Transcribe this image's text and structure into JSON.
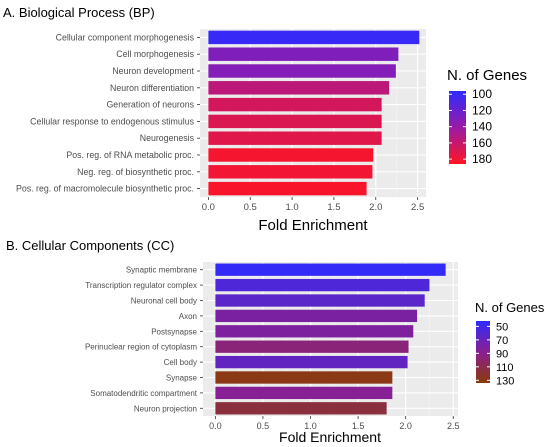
{
  "chart_data": [
    {
      "type": "bar",
      "orientation": "horizontal",
      "title": "A. Biological Process (BP)",
      "xlabel": "Fold Enrichment",
      "ylabel": "",
      "xlim": [
        -0.1,
        2.6
      ],
      "xticks": [
        "0.0",
        "0.5",
        "1.0",
        "1.5",
        "2.0",
        "2.5"
      ],
      "xtick_values": [
        0,
        0.5,
        1.0,
        1.5,
        2.0,
        2.5
      ],
      "grid": true,
      "legend_position": "right",
      "categories": [
        "Cellular component morphogenesis",
        "Cell morphogenesis",
        "Neuron development",
        "Neuron differentiation",
        "Generation of neurons",
        "Cellular response to endogenous stimulus",
        "Neurogenesis",
        "Pos. reg. of RNA metabolic proc.",
        "Neg. reg. of biosynthetic proc.",
        "Pos. reg. of macromolecule biosynthetic proc."
      ],
      "values": [
        2.52,
        2.27,
        2.24,
        2.16,
        2.07,
        2.07,
        2.07,
        1.97,
        1.96,
        1.89
      ],
      "color_values": [
        100,
        130,
        132,
        156,
        166,
        170,
        172,
        182,
        180,
        183
      ],
      "colorbar": {
        "title": "N. of Genes",
        "ticks": [
          "100",
          "120",
          "140",
          "160",
          "180"
        ],
        "tick_values": [
          100,
          120,
          140,
          160,
          180
        ],
        "range": [
          96,
          186
        ],
        "color_low": "#2e2bff",
        "color_mid": "#9b1aa6",
        "color_high": "#ff1522"
      }
    },
    {
      "type": "bar",
      "orientation": "horizontal",
      "title": "B. Cellular Components (CC)",
      "xlabel": "Fold Enrichment",
      "ylabel": "",
      "xlim": [
        -0.13,
        2.55
      ],
      "xticks": [
        "0.0",
        "0.5",
        "1.0",
        "1.5",
        "2.0",
        "2.5"
      ],
      "xtick_values": [
        0,
        0.5,
        1.0,
        1.5,
        2.0,
        2.5
      ],
      "grid": true,
      "legend_position": "right",
      "categories": [
        "Synaptic membrane",
        "Transcription regulator complex",
        "Neuronal cell body",
        "Axon",
        "Postsynapse",
        "Perinuclear region of cytoplasm",
        "Cell body",
        "Synapse",
        "Somatodendritic compartment",
        "Neuron projection"
      ],
      "values": [
        2.42,
        2.25,
        2.2,
        2.12,
        2.08,
        2.03,
        2.02,
        1.86,
        1.86,
        1.8
      ],
      "color_values": [
        45,
        58,
        64,
        80,
        82,
        96,
        68,
        130,
        86,
        116
      ],
      "colorbar": {
        "title": "N. of Genes",
        "ticks": [
          "50",
          "70",
          "90",
          "110",
          "130"
        ],
        "tick_values": [
          50,
          70,
          90,
          110,
          130
        ],
        "range": [
          42,
          134
        ],
        "color_low": "#2e2bff",
        "color_mid": "#8a1f8f",
        "color_high": "#8a3a0a"
      }
    }
  ]
}
